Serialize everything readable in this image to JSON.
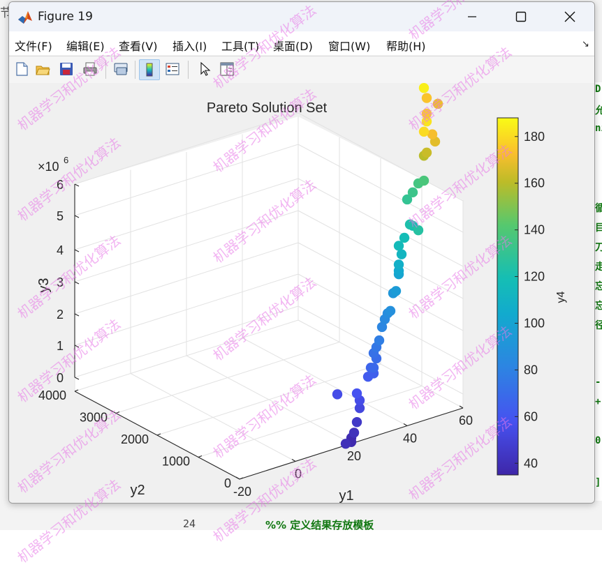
{
  "background": {
    "left_text": "节",
    "code_fragments": [
      "D",
      "允",
      "ni",
      "循",
      "目",
      "刀",
      "走",
      "忘",
      "忘",
      "径",
      "-",
      "+",
      "0)",
      "]"
    ],
    "line_number": "24",
    "comment": "%% 定义结果存放模板"
  },
  "window": {
    "title": "Figure 19"
  },
  "menu": {
    "items": [
      "文件(F)",
      "编辑(E)",
      "查看(V)",
      "插入(I)",
      "工具(T)",
      "桌面(D)",
      "窗口(W)",
      "帮助(H)"
    ],
    "dock_arrow": "↘"
  },
  "toolbar": {
    "tools": [
      "new-figure-icon",
      "open-file-icon",
      "save-icon",
      "print-icon",
      "link-plot-icon",
      "colorbar-icon",
      "legend-icon",
      "pointer-icon",
      "property-inspector-icon"
    ],
    "active": [
      "colorbar-icon"
    ]
  },
  "watermark": "机器学习和优化算法",
  "chart_data": {
    "type": "scatter",
    "title": "Pareto Solution Set",
    "xlabel": "y1",
    "ylabel": "y2",
    "zlabel": "y3",
    "x_ticks": [
      -20,
      0,
      20,
      40,
      60
    ],
    "y_ticks": [
      0,
      1000,
      2000,
      3000,
      4000
    ],
    "z_ticks": [
      0,
      1,
      2,
      3,
      4,
      5,
      6
    ],
    "z_exponent": "×10",
    "z_exponent_power": "6",
    "xlim": [
      -20,
      60
    ],
    "ylim": [
      0,
      4000
    ],
    "zlim": [
      0,
      6
    ],
    "colorbar": {
      "label": "y4",
      "ticks": [
        40,
        60,
        80,
        100,
        120,
        140,
        160,
        180
      ],
      "range": [
        35,
        188
      ]
    },
    "grid": true,
    "points": [
      {
        "y1": 20,
        "y2": 0,
        "y3": 0.18,
        "y4": 38
      },
      {
        "y1": 20,
        "y2": 0,
        "y3": 0.05,
        "y4": 37
      },
      {
        "y1": 18,
        "y2": 0,
        "y3": 0.05,
        "y4": 40
      },
      {
        "y1": 21,
        "y2": 0,
        "y3": 0.32,
        "y4": 41
      },
      {
        "y1": 22,
        "y2": 0,
        "y3": 0.63,
        "y4": 45
      },
      {
        "y1": 23,
        "y2": 0,
        "y3": 1.05,
        "y4": 52
      },
      {
        "y1": 23,
        "y2": 0,
        "y3": 1.3,
        "y4": 55
      },
      {
        "y1": 22,
        "y2": 0,
        "y3": 1.55,
        "y4": 58
      },
      {
        "y1": 15,
        "y2": 0,
        "y3": 1.72,
        "y4": 55
      },
      {
        "y1": 26,
        "y2": 0,
        "y3": 1.97,
        "y4": 62
      },
      {
        "y1": 28,
        "y2": 0,
        "y3": 2.02,
        "y4": 64
      },
      {
        "y1": 27,
        "y2": 0,
        "y3": 2.23,
        "y4": 66
      },
      {
        "y1": 28,
        "y2": 0,
        "y3": 2.2,
        "y4": 68
      },
      {
        "y1": 29,
        "y2": 0,
        "y3": 2.47,
        "y4": 70
      },
      {
        "y1": 28,
        "y2": 0,
        "y3": 2.67,
        "y4": 72
      },
      {
        "y1": 29,
        "y2": 0,
        "y3": 2.83,
        "y4": 75
      },
      {
        "y1": 30,
        "y2": 0,
        "y3": 3.02,
        "y4": 78
      },
      {
        "y1": 31,
        "y2": 0,
        "y3": 3.42,
        "y4": 82
      },
      {
        "y1": 32,
        "y2": 0,
        "y3": 3.64,
        "y4": 84
      },
      {
        "y1": 33,
        "y2": 0,
        "y3": 3.8,
        "y4": 86
      },
      {
        "y1": 34,
        "y2": 0,
        "y3": 3.85,
        "y4": 88
      },
      {
        "y1": 35,
        "y2": 0,
        "y3": 4.39,
        "y4": 92
      },
      {
        "y1": 36,
        "y2": 0,
        "y3": 4.43,
        "y4": 95
      },
      {
        "y1": 37,
        "y2": 0,
        "y3": 4.94,
        "y4": 100
      },
      {
        "y1": 37,
        "y2": 0,
        "y3": 5.05,
        "y4": 103
      },
      {
        "y1": 37,
        "y2": 0,
        "y3": 5.25,
        "y4": 108
      },
      {
        "y1": 38,
        "y2": 0,
        "y3": 5.55,
        "y4": 112
      },
      {
        "y1": 37,
        "y2": 0,
        "y3": 5.85,
        "y4": 116
      },
      {
        "y1": 39,
        "y2": 0,
        "y3": 6.05,
        "y4": 118
      },
      {
        "y1": 42,
        "y2": 0,
        "y3": 6.35,
        "y4": 120
      },
      {
        "y1": 41,
        "y2": 0,
        "y3": 6.42,
        "y4": 122
      },
      {
        "y1": 44,
        "y2": 0,
        "y3": 6.15,
        "y4": 125
      },
      {
        "y1": 40,
        "y2": 0,
        "y3": 7.25,
        "y4": 130
      },
      {
        "y1": 42,
        "y2": 0,
        "y3": 7.42,
        "y4": 133
      },
      {
        "y1": 44,
        "y2": 0,
        "y3": 7.65,
        "y4": 136
      },
      {
        "y1": 46,
        "y2": 0,
        "y3": 7.68,
        "y4": 138
      },
      {
        "y1": 46,
        "y2": 0,
        "y3": 8.48,
        "y4": 160
      },
      {
        "y1": 47,
        "y2": 0,
        "y3": 8.55,
        "y4": 163
      },
      {
        "y1": 50,
        "y2": 0,
        "y3": 8.82,
        "y4": 168
      },
      {
        "y1": 49,
        "y2": 0,
        "y3": 9.08,
        "y4": 172
      },
      {
        "y1": 46,
        "y2": 0,
        "y3": 9.25,
        "y4": 180
      },
      {
        "y1": 47,
        "y2": 0,
        "y3": 9.55,
        "y4": 182
      },
      {
        "y1": 47,
        "y2": 0,
        "y3": 9.8,
        "y4": 176
      },
      {
        "y1": 51,
        "y2": 0,
        "y3": 10.0,
        "y4": 170
      },
      {
        "y1": 47,
        "y2": 0,
        "y3": 10.3,
        "y4": 174
      },
      {
        "y1": 46,
        "y2": 0,
        "y3": 10.65,
        "y4": 185
      }
    ]
  }
}
